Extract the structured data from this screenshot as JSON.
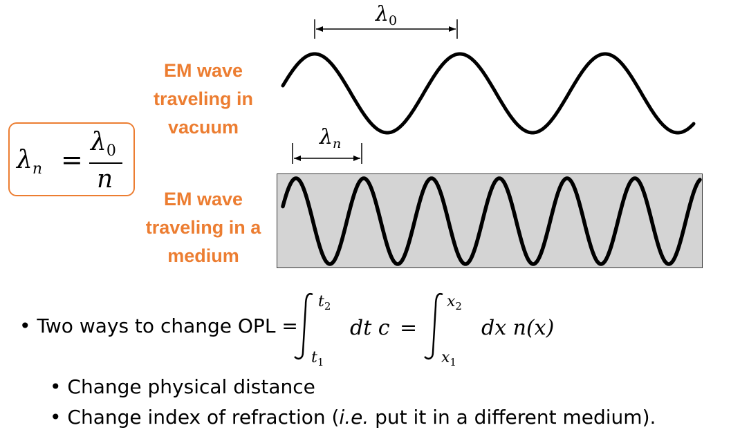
{
  "vacuum_label": [
    "EM wave",
    "traveling in",
    "vacuum"
  ],
  "medium_label": [
    "EM wave",
    "traveling in a",
    "medium"
  ],
  "formula": {
    "lhs": "λn",
    "lhs_base": "λ",
    "lhs_sub": "n",
    "equals": "=",
    "numerator_base": "λ",
    "numerator_sub": "0",
    "denominator": "n"
  },
  "vacuum_wave": {
    "wavelength_label_base": "λ",
    "wavelength_label_sub": "0"
  },
  "medium_wave": {
    "wavelength_label_base": "λ",
    "wavelength_label_sub": "n",
    "medium_color": "#d4d4d4"
  },
  "opl_line": {
    "prefix": "• Two ways to change OPL =",
    "integral1_upper": "t2",
    "integral1_lower": "t1",
    "integrand1": "dt c =",
    "integral2_upper": "x2",
    "integral2_lower": "x1",
    "integrand2": "dx n(x)"
  },
  "sub_bullets": [
    {
      "bullet": "•",
      "text_before": "Change physical distance",
      "italic": "",
      "text_after": ""
    },
    {
      "bullet": "•",
      "text_before": "Change index of refraction (",
      "italic": "i.e.",
      "text_after": " put it in a different medium)."
    }
  ],
  "colors": {
    "accent": "#ec7d31",
    "wave": "#000000",
    "medium_fill": "#d4d4d4"
  }
}
